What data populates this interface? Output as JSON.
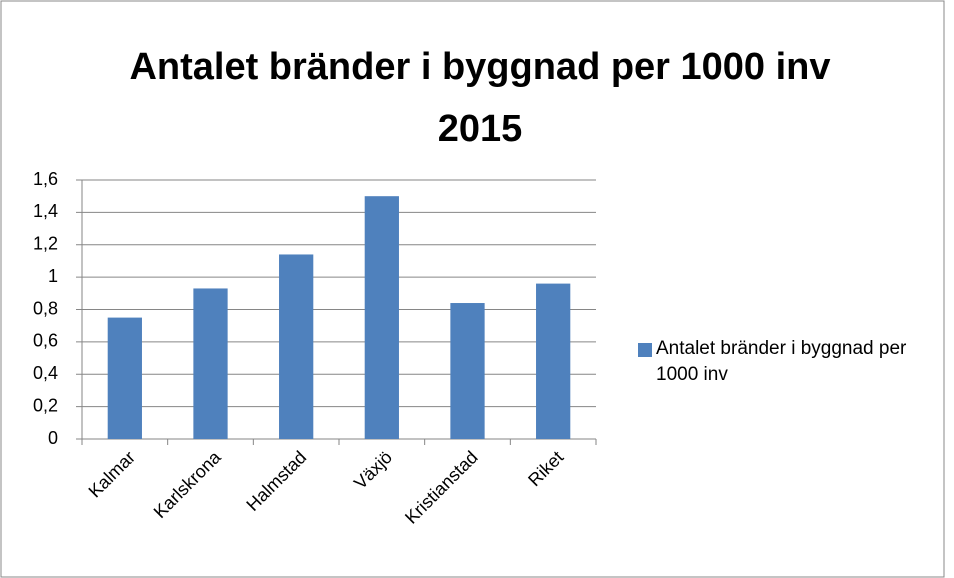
{
  "chart_data": {
    "type": "bar",
    "title": "Antalet bränder i byggnad per 1000 inv 2015",
    "categories": [
      "Kalmar",
      "Karlskrona",
      "Halmstad",
      "Växjö",
      "Kristianstad",
      "Riket"
    ],
    "series": [
      {
        "name": "Antalet bränder i byggnad per 1000 inv",
        "color": "#4f81bd",
        "values": [
          0.75,
          0.93,
          1.14,
          1.5,
          0.84,
          0.96
        ]
      }
    ],
    "ylim": [
      0,
      1.6
    ],
    "yticks": [
      0,
      {
        "value": 0.2,
        "label": "0,2"
      },
      {
        "value": 0.4,
        "label": "0,4"
      },
      {
        "value": 0.6,
        "label": "0,6"
      },
      {
        "value": 0.8,
        "label": "0,8"
      },
      1,
      {
        "value": 1.2,
        "label": "1,2"
      },
      {
        "value": 1.4,
        "label": "1,4"
      },
      {
        "value": 1.6,
        "label": "1,6"
      }
    ],
    "grid": true,
    "legend": "right"
  }
}
